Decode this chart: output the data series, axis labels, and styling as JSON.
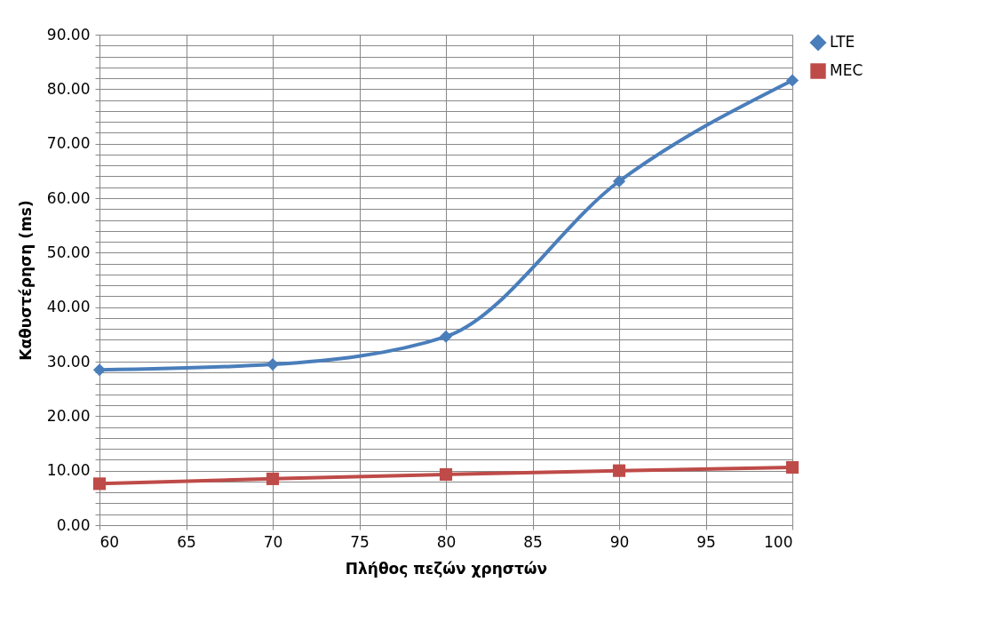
{
  "chart_data": {
    "type": "line",
    "xlabel": "Πλήθος πεζών χρηστών",
    "ylabel": "Καθυστέρηση (ms)",
    "x": [
      60,
      70,
      80,
      90,
      100
    ],
    "series": [
      {
        "name": "LTE",
        "color": "#4a7ebb",
        "marker": "diamond",
        "values": [
          28.5,
          29.5,
          34.6,
          63.1,
          81.6
        ]
      },
      {
        "name": "MEC",
        "color": "#be4b48",
        "marker": "square",
        "values": [
          7.6,
          8.5,
          9.3,
          10.0,
          10.6
        ]
      }
    ],
    "xlim": [
      60,
      100
    ],
    "xticks": [
      60,
      65,
      70,
      75,
      80,
      85,
      90,
      95,
      100
    ],
    "ylim": [
      0,
      90
    ],
    "yticks": [
      {
        "value": 0,
        "label": "0.00"
      },
      {
        "value": 2,
        "label": null
      },
      {
        "value": 4,
        "label": null
      },
      {
        "value": 6,
        "label": null
      },
      {
        "value": 8,
        "label": null
      },
      {
        "value": 10,
        "label": "10.00"
      },
      {
        "value": 12,
        "label": null
      },
      {
        "value": 14,
        "label": null
      },
      {
        "value": 16,
        "label": null
      },
      {
        "value": 18,
        "label": null
      },
      {
        "value": 20,
        "label": "20.00"
      },
      {
        "value": 22,
        "label": null
      },
      {
        "value": 24,
        "label": null
      },
      {
        "value": 26,
        "label": null
      },
      {
        "value": 28,
        "label": null
      },
      {
        "value": 30,
        "label": "30.00"
      },
      {
        "value": 32,
        "label": null
      },
      {
        "value": 34,
        "label": null
      },
      {
        "value": 36,
        "label": null
      },
      {
        "value": 38,
        "label": null
      },
      {
        "value": 40,
        "label": "40.00"
      },
      {
        "value": 42,
        "label": null
      },
      {
        "value": 44,
        "label": null
      },
      {
        "value": 46,
        "label": null
      },
      {
        "value": 48,
        "label": null
      },
      {
        "value": 50,
        "label": "50.00"
      },
      {
        "value": 52,
        "label": null
      },
      {
        "value": 54,
        "label": null
      },
      {
        "value": 56,
        "label": null
      },
      {
        "value": 58,
        "label": null
      },
      {
        "value": 60,
        "label": "60.00"
      },
      {
        "value": 62,
        "label": null
      },
      {
        "value": 64,
        "label": null
      },
      {
        "value": 66,
        "label": null
      },
      {
        "value": 68,
        "label": null
      },
      {
        "value": 70,
        "label": "70.00"
      },
      {
        "value": 72,
        "label": null
      },
      {
        "value": 74,
        "label": null
      },
      {
        "value": 76,
        "label": null
      },
      {
        "value": 78,
        "label": null
      },
      {
        "value": 80,
        "label": "80.00"
      },
      {
        "value": 82,
        "label": null
      },
      {
        "value": 84,
        "label": null
      },
      {
        "value": 86,
        "label": null
      },
      {
        "value": 88,
        "label": null
      },
      {
        "value": 90,
        "label": "90.00"
      }
    ],
    "grid": true,
    "legend": "right",
    "line_style": "solid"
  }
}
